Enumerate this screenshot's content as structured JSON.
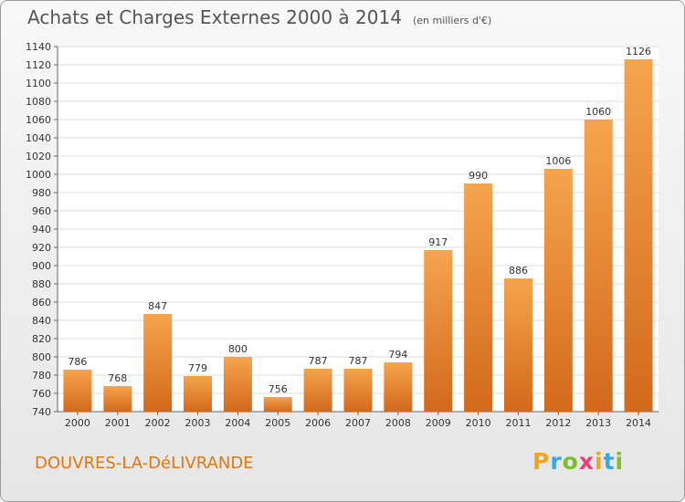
{
  "chart_data": {
    "type": "bar",
    "title": "Achats et Charges Externes 2000 à 2014",
    "unit_label": "(en milliers d'€)",
    "categories": [
      "2000",
      "2001",
      "2002",
      "2003",
      "2004",
      "2005",
      "2006",
      "2007",
      "2008",
      "2009",
      "2010",
      "2011",
      "2012",
      "2013",
      "2014"
    ],
    "values": [
      786,
      768,
      847,
      779,
      800,
      756,
      787,
      787,
      794,
      917,
      990,
      886,
      1006,
      1060,
      1126
    ],
    "ylim": [
      740,
      1140
    ],
    "yticks": [
      740,
      760,
      780,
      800,
      820,
      840,
      860,
      880,
      900,
      920,
      940,
      960,
      980,
      1000,
      1020,
      1040,
      1060,
      1080,
      1100,
      1120,
      1140
    ],
    "grid": true,
    "bar_color_top": "#f6a44e",
    "bar_color_bottom": "#d2691c"
  },
  "commune": "DOUVRES-LA-DéLIVRANDE",
  "logo": "Proxiti",
  "colors": {
    "title": "#555555",
    "commune": "#e07810",
    "grid": "#dddddd"
  }
}
